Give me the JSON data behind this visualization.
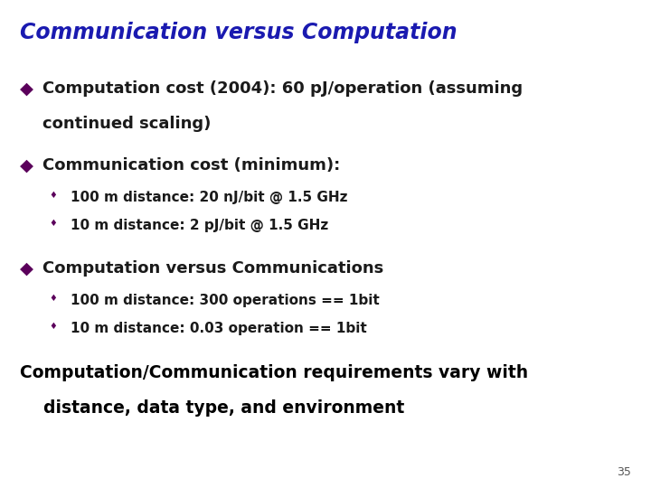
{
  "title": "Communication versus Computation",
  "title_color": "#1a1ab0",
  "title_fontsize": 17,
  "background_color": "#ffffff",
  "bullet_color": "#5b005b",
  "sub_bullet_color": "#5b005b",
  "main_text_color": "#1a1a1a",
  "sub_text_color": "#1a1a1a",
  "bottom_text_color": "#000000",
  "page_number": "35",
  "bullet1_line1": "Computation cost (2004): 60 pJ/operation (assuming",
  "bullet1_line2": "continued scaling)",
  "bullet2": "Communication cost (minimum):",
  "sub1_1": "100 m distance: 20 nJ/bit @ 1.5 GHz",
  "sub1_2": "10 m distance: 2 pJ/bit @ 1.5 GHz",
  "bullet3": "Computation versus Communications",
  "sub2_1": "100 m distance: 300 operations == 1bit",
  "sub2_2": "10 m distance: 0.03 operation == 1bit",
  "bottom_line1": "Computation/Communication requirements vary with",
  "bottom_line2": "    distance, data type, and environment"
}
